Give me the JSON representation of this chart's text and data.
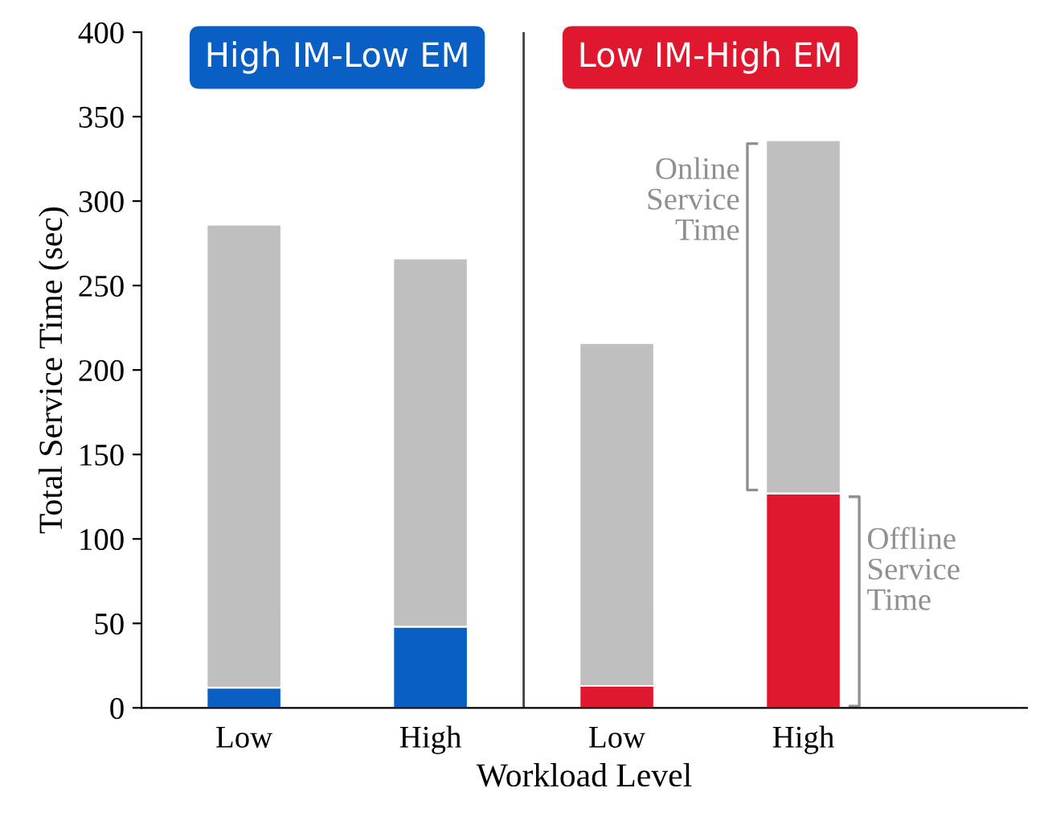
{
  "chart_data": {
    "type": "bar",
    "stacked": true,
    "xlabel": "Workload Level",
    "ylabel": "Total Service Time (sec)",
    "categories": [
      "Low",
      "High",
      "Low",
      "High"
    ],
    "series": [
      {
        "colors": [
          "#0a5fc4",
          "#0a5fc4",
          "#e0182f",
          "#e0182f"
        ],
        "values": [
          12,
          48,
          13,
          127
        ]
      },
      {
        "color": "#bfbfbf",
        "values": [
          274,
          218,
          203,
          209
        ]
      }
    ],
    "ylim": [
      0,
      400
    ],
    "yticks": [
      0,
      50,
      100,
      150,
      200,
      250,
      300,
      350,
      400
    ],
    "annotations": [
      "High IM-Low EM",
      "Low IM-High EM",
      "Online\nService\nTime",
      "Offline\nService\nTime"
    ],
    "grid": false
  }
}
